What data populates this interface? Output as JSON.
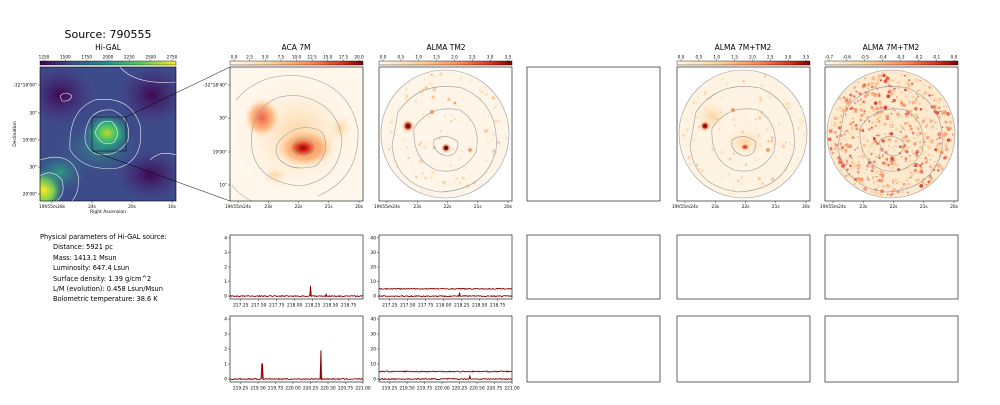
{
  "source_title": "Source: 790555",
  "colors": {
    "spectrum": "#8b0000",
    "contour": "#9a9a9a",
    "frame": "#000000",
    "hot": "#c62a14"
  },
  "physical_parameters": {
    "heading": "Physical parameters of Hi-GAL source:",
    "lines": [
      "Distance: 5921 pc",
      "Mass: 1413.1 Msun",
      "Luminosity: 647.4 Lsun",
      "Surface density: 1.39 g/cm^2",
      "L/M (evolution): 0.458 Lsun/Msun",
      "Bolometric temperature: 38.6 K"
    ]
  },
  "chart_data": [
    {
      "type": "heatmap",
      "title": "Hi-GAL",
      "colormap": "viridis",
      "colorbar_ticks": [
        "1250",
        "1500",
        "1750",
        "2000",
        "2250",
        "2500",
        "2750"
      ],
      "xlabel": "Right Ascension",
      "ylabel": "Declination",
      "x_ticks": [
        "19h55m28s",
        "24s",
        "20s",
        "16s"
      ],
      "y_ticks": [
        "-32°18'00\"",
        "30\"",
        "19'00\"",
        "30\"",
        "20'00\""
      ]
    },
    {
      "type": "heatmap",
      "title": "ACA 7M",
      "colormap": "OrRd",
      "colorbar_ticks": [
        "0.0",
        "2.5",
        "5.0",
        "7.5",
        "10.0",
        "12.5",
        "15.0",
        "17.5",
        "20.0"
      ],
      "x_ticks": [
        "19h55m24s",
        "23s",
        "22s",
        "21s",
        "20s"
      ],
      "y_ticks": [
        "-32°18'40\"",
        "50\"",
        "19'00\"",
        "10\""
      ]
    },
    {
      "type": "heatmap",
      "title": "ALMA TM2",
      "colormap": "OrRd",
      "colorbar_ticks": [
        "0.0",
        "0.5",
        "1.0",
        "1.5",
        "2.0",
        "2.5",
        "3.0",
        "3.5"
      ],
      "x_ticks": [
        "19h55m24s",
        "23s",
        "22s",
        "21s",
        "20s"
      ]
    },
    {
      "type": "heatmap",
      "title": "ALMA 7M+TM2",
      "colormap": "OrRd",
      "colorbar_ticks": [
        "0.0",
        "0.5",
        "1.0",
        "1.5",
        "2.0",
        "2.5",
        "3.0",
        "3.5"
      ],
      "x_ticks": [
        "19h55m24s",
        "23s",
        "22s",
        "21s",
        "20s"
      ]
    },
    {
      "type": "heatmap",
      "title": "ALMA 7M+TM2",
      "colormap": "OrRd",
      "colorbar_ticks": [
        "-0.7",
        "-0.6",
        "-0.5",
        "-0.4",
        "-0.3",
        "-0.2",
        "-0.1",
        "0.0"
      ],
      "x_ticks": [
        "19h55m24s",
        "23s",
        "22s",
        "21s",
        "20s"
      ]
    },
    {
      "type": "line",
      "panel": "ACA 7M spectrum, upper band",
      "xlim": [
        217.1,
        218.95
      ],
      "ylim": [
        -0.2,
        4.2
      ],
      "x_ticks": [
        217.25,
        217.5,
        217.75,
        218.0,
        218.25,
        218.5,
        218.75
      ],
      "y_ticks": [
        0,
        1,
        2,
        3,
        4
      ],
      "baseline": 0.0,
      "lines": [
        {
          "x": 218.22,
          "y": 0.7
        },
        {
          "x": 218.44,
          "y": 0.12
        }
      ],
      "series_offsets": []
    },
    {
      "type": "line",
      "panel": "ALMA TM2 spectrum, upper band",
      "xlim": [
        217.1,
        218.95
      ],
      "ylim": [
        -2,
        42
      ],
      "x_ticks": [
        217.25,
        217.5,
        217.75,
        218.0,
        218.25,
        218.5,
        218.75
      ],
      "y_ticks": [
        0,
        10,
        20,
        30,
        40
      ],
      "baseline": 0.0,
      "lines": [
        {
          "x": 218.22,
          "y": 2.5
        }
      ],
      "series_offsets": [
        5.0
      ]
    },
    {
      "type": "line",
      "panel": "ACA 7M spectrum, lower band",
      "xlim": [
        219.1,
        221.0
      ],
      "ylim": [
        -0.2,
        4.2
      ],
      "x_ticks": [
        219.25,
        219.5,
        219.75,
        220.0,
        220.25,
        220.5,
        220.75,
        221.0
      ],
      "y_ticks": [
        0,
        1,
        2,
        3,
        4
      ],
      "baseline": 0.0,
      "lines": [
        {
          "x": 219.56,
          "y": 1.0
        },
        {
          "x": 220.4,
          "y": 1.9
        }
      ],
      "series_offsets": []
    },
    {
      "type": "line",
      "panel": "ALMA TM2 spectrum, lower band",
      "xlim": [
        219.1,
        221.0
      ],
      "ylim": [
        -2,
        42
      ],
      "x_ticks": [
        219.25,
        219.5,
        219.75,
        220.0,
        220.25,
        220.5,
        220.75,
        221.0
      ],
      "y_ticks": [
        0,
        10,
        20,
        30,
        40
      ],
      "baseline": 0.0,
      "lines": [
        {
          "x": 220.4,
          "y": 2.0
        }
      ],
      "series_offsets": [
        5.0
      ]
    }
  ]
}
